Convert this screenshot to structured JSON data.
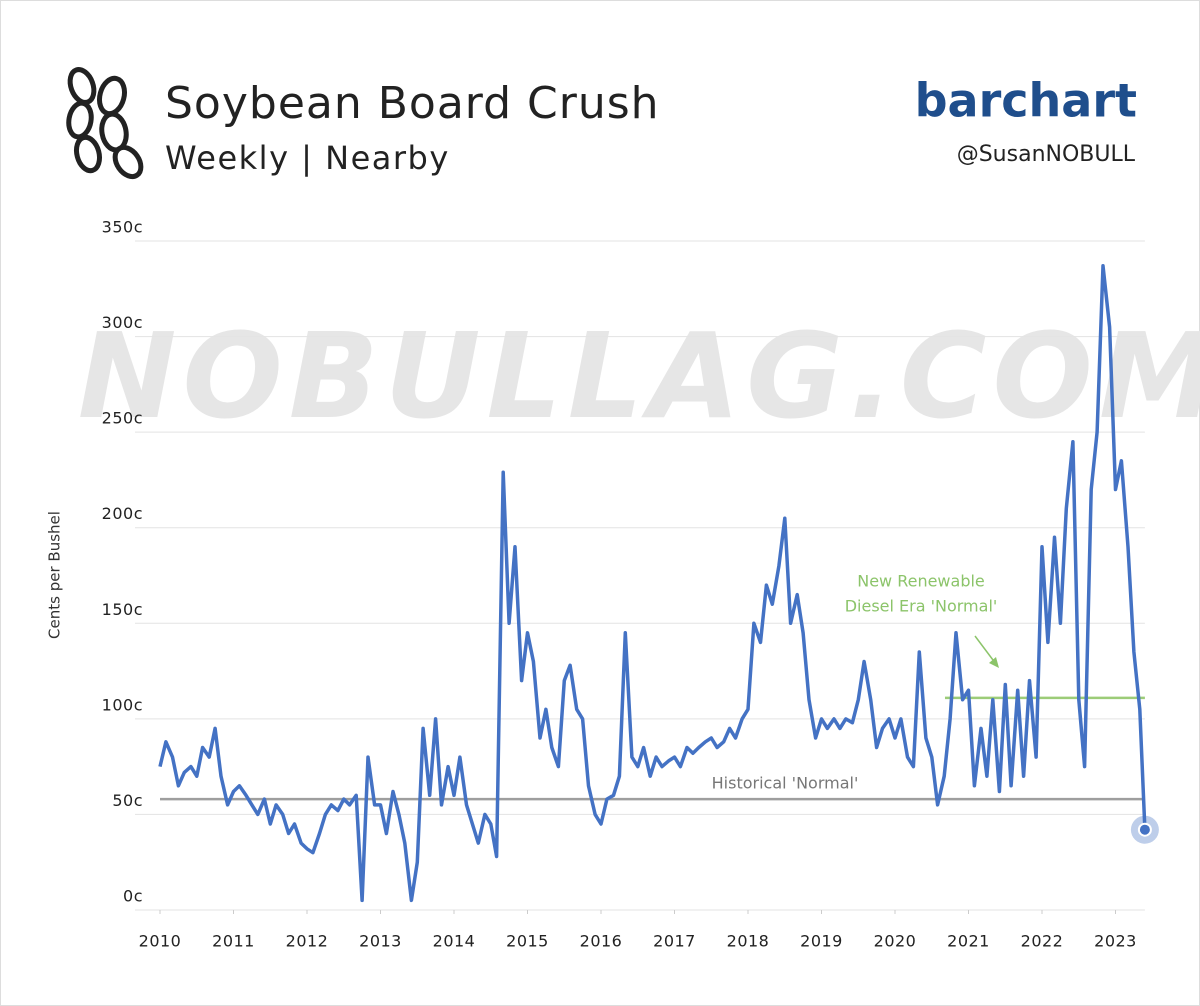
{
  "chart_data": {
    "type": "line",
    "title": "Soybean Board Crush",
    "subtitle": "Weekly | Nearby",
    "brand": "barchart",
    "handle": "@SusanNOBULL",
    "watermark": "NOBULLAG.COM",
    "y_label": "Cents per Bushel",
    "xlim": [
      2010,
      2023.4
    ],
    "xticks": [
      2010,
      2011,
      2012,
      2013,
      2014,
      2015,
      2016,
      2017,
      2018,
      2019,
      2020,
      2021,
      2022,
      2023
    ],
    "ylim": [
      0,
      350
    ],
    "yticks": [
      {
        "value": 0,
        "label": "0c"
      },
      {
        "value": 50,
        "label": "50c"
      },
      {
        "value": 100,
        "label": "100c"
      },
      {
        "value": 150,
        "label": "150c"
      },
      {
        "value": 200,
        "label": "200c"
      },
      {
        "value": 250,
        "label": "250c"
      },
      {
        "value": 300,
        "label": "300c"
      },
      {
        "value": 350,
        "label": "350c"
      }
    ],
    "grid": true,
    "x": [
      2010,
      2010.08,
      2010.17,
      2010.25,
      2010.33,
      2010.42,
      2010.5,
      2010.58,
      2010.67,
      2010.75,
      2010.83,
      2010.92,
      2011,
      2011.08,
      2011.17,
      2011.25,
      2011.33,
      2011.42,
      2011.5,
      2011.58,
      2011.67,
      2011.75,
      2011.83,
      2011.92,
      2012,
      2012.08,
      2012.17,
      2012.25,
      2012.33,
      2012.42,
      2012.5,
      2012.58,
      2012.67,
      2012.75,
      2012.83,
      2012.92,
      2013,
      2013.08,
      2013.17,
      2013.25,
      2013.33,
      2013.42,
      2013.5,
      2013.58,
      2013.67,
      2013.75,
      2013.83,
      2013.92,
      2014,
      2014.08,
      2014.17,
      2014.25,
      2014.33,
      2014.42,
      2014.5,
      2014.58,
      2014.67,
      2014.75,
      2014.83,
      2014.92,
      2015,
      2015.08,
      2015.17,
      2015.25,
      2015.33,
      2015.42,
      2015.5,
      2015.58,
      2015.67,
      2015.75,
      2015.83,
      2015.92,
      2016,
      2016.08,
      2016.17,
      2016.25,
      2016.33,
      2016.42,
      2016.5,
      2016.58,
      2016.67,
      2016.75,
      2016.83,
      2016.92,
      2017,
      2017.08,
      2017.17,
      2017.25,
      2017.33,
      2017.42,
      2017.5,
      2017.58,
      2017.67,
      2017.75,
      2017.83,
      2017.92,
      2018,
      2018.08,
      2018.17,
      2018.25,
      2018.33,
      2018.42,
      2018.5,
      2018.58,
      2018.67,
      2018.75,
      2018.83,
      2018.92,
      2019,
      2019.08,
      2019.17,
      2019.25,
      2019.33,
      2019.42,
      2019.5,
      2019.58,
      2019.67,
      2019.75,
      2019.83,
      2019.92,
      2020,
      2020.08,
      2020.17,
      2020.25,
      2020.33,
      2020.42,
      2020.5,
      2020.58,
      2020.67,
      2020.75,
      2020.83,
      2020.92,
      2021,
      2021.08,
      2021.17,
      2021.25,
      2021.33,
      2021.42,
      2021.5,
      2021.58,
      2021.67,
      2021.75,
      2021.83,
      2021.92,
      2022,
      2022.08,
      2022.17,
      2022.25,
      2022.33,
      2022.42,
      2022.5,
      2022.58,
      2022.67,
      2022.75,
      2022.83,
      2022.92,
      2023,
      2023.08,
      2023.17,
      2023.25,
      2023.33,
      2023.4
    ],
    "series": [
      {
        "name": "Soybean Board Crush",
        "color": "#4472c4",
        "values": [
          75,
          88,
          80,
          65,
          72,
          75,
          70,
          85,
          80,
          95,
          70,
          55,
          62,
          65,
          60,
          55,
          50,
          58,
          45,
          55,
          50,
          40,
          45,
          35,
          32,
          30,
          40,
          50,
          55,
          52,
          58,
          55,
          60,
          5,
          80,
          55,
          55,
          40,
          62,
          50,
          35,
          5,
          25,
          95,
          60,
          100,
          55,
          75,
          60,
          80,
          55,
          45,
          35,
          50,
          45,
          28,
          229,
          150,
          190,
          120,
          145,
          130,
          90,
          105,
          85,
          75,
          120,
          128,
          105,
          100,
          65,
          50,
          45,
          58,
          60,
          70,
          145,
          80,
          75,
          85,
          70,
          80,
          75,
          78,
          80,
          75,
          85,
          82,
          85,
          88,
          90,
          85,
          88,
          95,
          90,
          100,
          105,
          150,
          140,
          170,
          160,
          180,
          205,
          150,
          165,
          145,
          110,
          90,
          100,
          95,
          100,
          95,
          100,
          98,
          110,
          130,
          110,
          85,
          95,
          100,
          90,
          100,
          80,
          75,
          135,
          90,
          80,
          55,
          70,
          100,
          145,
          110,
          115,
          65,
          95,
          70,
          110,
          62,
          118,
          65,
          115,
          70,
          120,
          80,
          190,
          140,
          195,
          150,
          210,
          245,
          110,
          75,
          220,
          250,
          337,
          305,
          220,
          235,
          190,
          135,
          105,
          42
        ]
      }
    ],
    "reference_lines": [
      {
        "value": 58,
        "color": "#9e9e9e",
        "from": 2010
      },
      {
        "value": 111,
        "color": "#9ccc78",
        "from": 2020.68
      }
    ],
    "annotations": [
      {
        "lines": [
          "Historical 'Normal'"
        ],
        "color": "#777777"
      },
      {
        "lines": [
          "New Renewable",
          "Diesel Era 'Normal'"
        ],
        "color": "#8cc46a"
      }
    ]
  }
}
